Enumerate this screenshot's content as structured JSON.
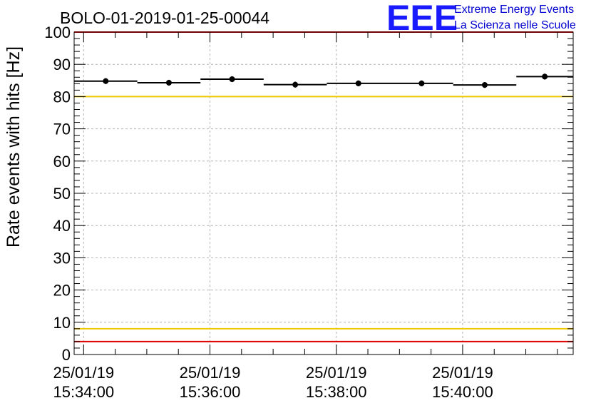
{
  "title": "BOLO-01-2019-01-25-00044",
  "logo": {
    "mark": "EEE",
    "line1": "Extreme Energy Events",
    "line2": "La Scienza nelle Scuole",
    "color": "#1a1aff"
  },
  "chart_data": {
    "type": "scatter",
    "ylabel": "Rate events with hits [Hz]",
    "xlabel": "",
    "ylim": [
      0,
      100
    ],
    "yticks": [
      0,
      10,
      20,
      30,
      40,
      50,
      60,
      70,
      80,
      90,
      100
    ],
    "xlim": [
      "25/01/19 15:33:51",
      "25/01/19 15:41:45"
    ],
    "xticks": [
      {
        "time": "15:34:00",
        "date": "25/01/19",
        "time_label": "15:34:00"
      },
      {
        "time": "15:36:00",
        "date": "25/01/19",
        "time_label": "15:36:00"
      },
      {
        "time": "15:38:00",
        "date": "25/01/19",
        "time_label": "15:38:00"
      },
      {
        "time": "15:40:00",
        "date": "25/01/19",
        "time_label": "15:40:00"
      }
    ],
    "grid": true,
    "series": [
      {
        "points": [
          {
            "start": "15:33:51",
            "end": "15:34:51",
            "y": 84.8,
            "yerr": 0.8
          },
          {
            "start": "15:34:51",
            "end": "15:35:51",
            "y": 84.3,
            "yerr": 0.8
          },
          {
            "start": "15:35:51",
            "end": "15:36:51",
            "y": 85.4,
            "yerr": 0.8
          },
          {
            "start": "15:36:51",
            "end": "15:37:51",
            "y": 83.7,
            "yerr": 0.8
          },
          {
            "start": "15:37:51",
            "end": "15:39:51",
            "y": 84.1,
            "yerr": 0.8
          },
          {
            "start": "15:39:51",
            "end": "15:40:51",
            "y": 83.6,
            "yerr": 0.8
          },
          {
            "start": "15:40:51",
            "end": "15:41:45",
            "y": 86.2,
            "yerr": 0.8
          }
        ],
        "markers_at": [
          "15:34:21",
          "15:35:21",
          "15:36:21",
          "15:37:21",
          "15:38:21",
          "15:39:21",
          "15:40:21",
          "15:41:18"
        ],
        "marker_values": [
          84.8,
          84.3,
          85.4,
          83.7,
          84.1,
          84.1,
          83.6,
          86.2
        ]
      }
    ],
    "reference_lines": [
      {
        "y": 100,
        "color": "#e00000"
      },
      {
        "y": 80,
        "color": "#f0c800"
      },
      {
        "y": 8,
        "color": "#f0c800"
      },
      {
        "y": 4,
        "color": "#e00000"
      }
    ]
  }
}
